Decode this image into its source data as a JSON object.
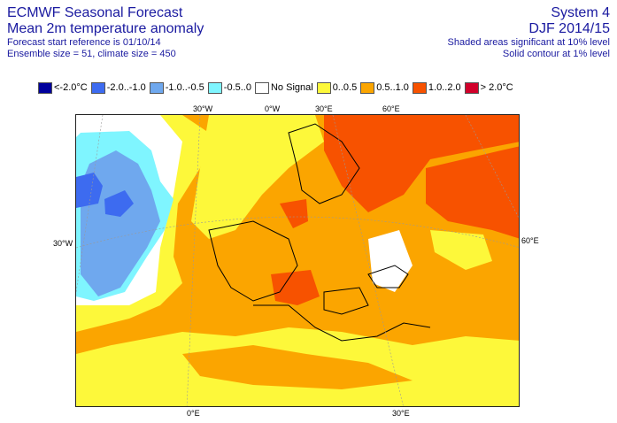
{
  "header": {
    "title": "ECMWF Seasonal Forecast",
    "subtitle": "Mean 2m temperature anomaly",
    "start_ref": "Forecast start reference is 01/10/14",
    "ensemble": "Ensemble size = 51, climate size = 450",
    "system": "System 4",
    "period": "DJF 2014/15",
    "shaded_note": "Shaded areas significant at 10% level",
    "contour_note": "Solid contour at 1% level"
  },
  "legend": [
    {
      "label": "<-2.0°C",
      "color": "#00009c"
    },
    {
      "label": "-2.0..-1.0",
      "color": "#3d6bf0"
    },
    {
      "label": "-1.0..-0.5",
      "color": "#6fa8ee"
    },
    {
      "label": "-0.5..0",
      "color": "#7ff5ff"
    },
    {
      "label": "No Signal",
      "color": "#ffffff"
    },
    {
      "label": "0..0.5",
      "color": "#fdf83a"
    },
    {
      "label": "0.5..1.0",
      "color": "#fba500"
    },
    {
      "label": "1.0..2.0",
      "color": "#f75200"
    },
    {
      "label": "> 2.0°C",
      "color": "#d1002a"
    }
  ],
  "grid_labels": {
    "lon_top_30w": "30°W",
    "lon_top_0": "0°W",
    "lon_top_30e": "30°E",
    "lon_top_60e": "60°E",
    "lat_left": "30°W",
    "lat_right": "60°E",
    "lon_bottom_0": "0°E",
    "lon_bottom_30": "30°E"
  }
}
